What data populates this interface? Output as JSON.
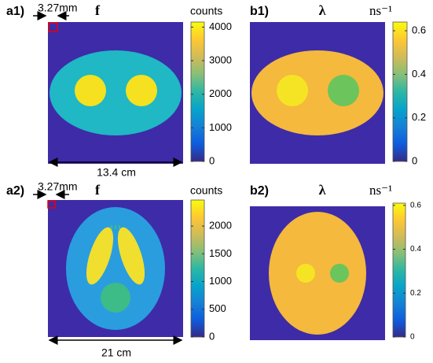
{
  "chart_data": [
    {
      "type": "heatmap",
      "panel_label": "a1)",
      "title": "f",
      "colorbar_label": "counts",
      "scale_label": "3.27mm",
      "width_label": "13.4 cm",
      "ylim": [
        0,
        4150
      ],
      "yticks": [
        0,
        1000,
        2000,
        3000,
        4000
      ]
    },
    {
      "type": "heatmap",
      "panel_label": "b1)",
      "title": "λ",
      "colorbar_label": "ns⁻¹",
      "ylim": [
        0,
        0.64
      ],
      "yticks": [
        0,
        0.2,
        0.4,
        0.6
      ]
    },
    {
      "type": "heatmap",
      "panel_label": "a2)",
      "title": "f",
      "colorbar_label": "counts",
      "scale_label": "3.27mm",
      "width_label": "21 cm",
      "ylim": [
        0,
        2470
      ],
      "yticks": [
        0,
        500,
        1000,
        1500,
        2000
      ]
    },
    {
      "type": "heatmap",
      "panel_label": "b2)",
      "title": "λ",
      "colorbar_label": "ns⁻¹",
      "ylim": [
        0,
        0.61
      ],
      "yticks": [
        0,
        0.2,
        0.4,
        0.6
      ]
    }
  ]
}
